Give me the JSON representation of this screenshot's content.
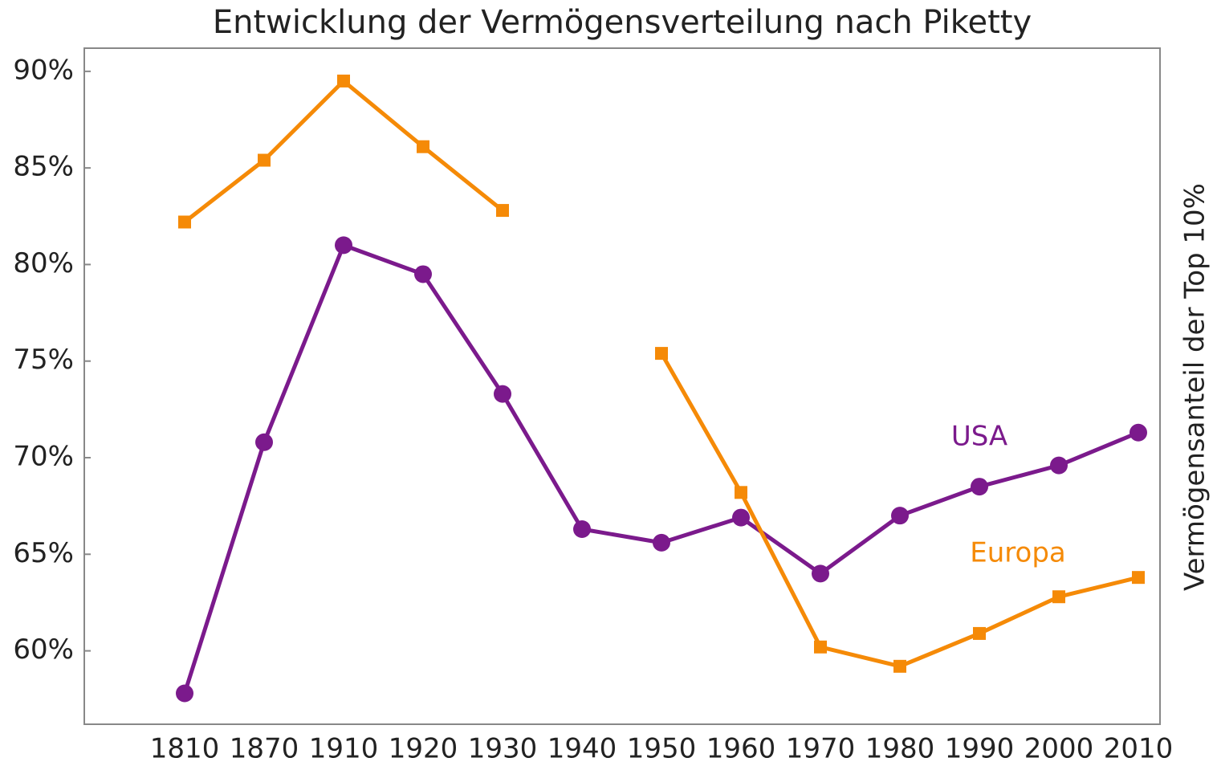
{
  "chart_data": {
    "type": "line",
    "title": "Entwicklung der Vermögensverteilung nach Piketty",
    "y_label": "Vermögensanteil der Top 10%",
    "categories": [
      "1810",
      "1870",
      "1910",
      "1920",
      "1930",
      "1940",
      "1950",
      "1960",
      "1970",
      "1980",
      "1990",
      "2000",
      "2010"
    ],
    "series": [
      {
        "name": "USA",
        "color": "#7b1a8c",
        "marker": "circle",
        "values": [
          57.8,
          70.8,
          81.0,
          79.5,
          73.3,
          66.3,
          65.6,
          66.9,
          64.0,
          67.0,
          68.5,
          69.6,
          71.3
        ]
      },
      {
        "name": "Europa",
        "color": "#f58a07",
        "marker": "square",
        "values": [
          82.2,
          85.4,
          89.5,
          86.1,
          82.8,
          null,
          75.4,
          68.2,
          60.2,
          59.2,
          60.9,
          62.8,
          63.8
        ]
      }
    ],
    "ylim": [
      56.2,
      91.2
    ],
    "yticks": [
      {
        "value": 60,
        "label": "60%"
      },
      {
        "value": 65,
        "label": "65%"
      },
      {
        "value": 70,
        "label": "70%"
      },
      {
        "value": 75,
        "label": "75%"
      },
      {
        "value": 80,
        "label": "80%"
      },
      {
        "value": 85,
        "label": "85%"
      },
      {
        "value": 90,
        "label": "90%"
      }
    ],
    "grid": false
  }
}
